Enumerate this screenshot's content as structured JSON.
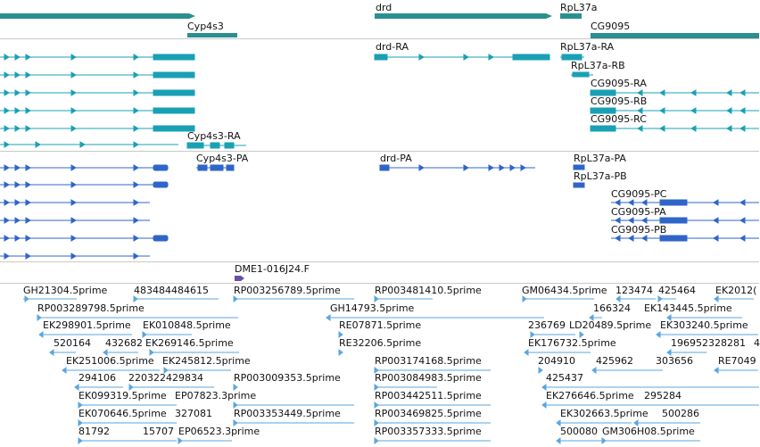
{
  "colors": {
    "gene": "#2b8f8f",
    "transcript": "#1aa0b4",
    "protein": "#2f65c9",
    "clone": "#6b4ea8",
    "est": "#5aa6e0"
  },
  "genes": {
    "cyp4s3": "Cyp4s3",
    "drd": "drd",
    "rpl37a": "RpL37a",
    "cg9095": "CG9095"
  },
  "transcripts": {
    "drd_ra": "drd-RA",
    "rpl37a_ra": "RpL37a-RA",
    "rpl37a_rb": "RpL37a-RB",
    "cg9095_ra": "CG9095-RA",
    "cg9095_rb": "CG9095-RB",
    "cg9095_rc": "CG9095-RC",
    "cyp4s3_ra": "Cyp4s3-RA"
  },
  "proteins": {
    "cyp4s3_pa": "Cyp4s3-PA",
    "drd_pa": "drd-PA",
    "rpl37a_pa": "RpL37a-PA",
    "rpl37a_pb": "RpL37a-PB",
    "cg9095_pc": "CG9095-PC",
    "cg9095_pa": "CG9095-PA",
    "cg9095_pb": "CG9095-PB"
  },
  "clone": {
    "label": "DME1-016J24.F"
  },
  "ests": {
    "gh21304": "GH21304.5prime",
    "n483484484615": "483484484615",
    "rp003256789": "RP003256789.5prime",
    "rp003481410": "RP003481410.5prime",
    "gm06434": "GM06434.5prime",
    "n123474": "123474",
    "n425464": "425464",
    "ek20126": "EK2012(",
    "rp003289798": "RP003289798.5prime",
    "gh14793": "GH14793.5prime",
    "n166324": "166324",
    "ek143445": "EK143445.5prime",
    "ek298901": "EK298901.5prime",
    "ek010848": "EK010848.5prime",
    "re07871": "RE07871.5prime",
    "n236769": "236769",
    "ld20489": "LD20489.5prime",
    "ek303240": "EK303240.5prime",
    "n520164": "520164",
    "n432682": "432682",
    "ek269146": "EK269146.5prime",
    "re32206": "RE32206.5prime",
    "ek176732": "EK176732.5prime",
    "n196952328281": "196952328281",
    "n4": "4",
    "ek251006": "EK251006.5prime",
    "ek245812": "EK245812.5prime",
    "rp003174168": "RP003174168.5prime",
    "n204910": "204910",
    "n425962": "425962",
    "n303656": "303656",
    "re7049": "RE7049",
    "n294106": "294106",
    "n220322429834": "220322429834",
    "rp003009353": "RP003009353.5prime",
    "rp003084983": "RP003084983.5prime",
    "n425437": "425437",
    "ek099319": "EK099319.5prime",
    "ep07823": "EP07823.3prime",
    "rp003442511": "RP003442511.5prime",
    "ek276646": "EK276646.5prime",
    "n295284": "295284",
    "ek070646": "EK070646.5prime",
    "n327081": "327081",
    "rp003353449": "RP003353449.5prime",
    "rp003469825": "RP003469825.5prime",
    "ek302663": "EK302663.5prime",
    "n500286": "500286",
    "n81792": "81792",
    "n15707": "15707",
    "ep06523": "EP06523.3prime",
    "rp003357333": "RP003357333.5prime",
    "n500080": "500080",
    "gm306h08": "GM306H08.5prime"
  }
}
